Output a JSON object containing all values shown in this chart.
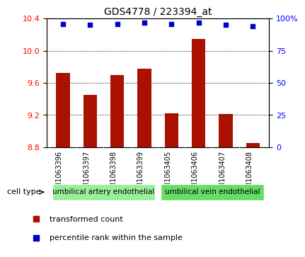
{
  "title": "GDS4778 / 223394_at",
  "samples": [
    "GSM1063396",
    "GSM1063397",
    "GSM1063398",
    "GSM1063399",
    "GSM1063405",
    "GSM1063406",
    "GSM1063407",
    "GSM1063408"
  ],
  "bar_values": [
    9.72,
    9.45,
    9.7,
    9.78,
    9.22,
    10.15,
    9.21,
    8.85
  ],
  "percentile_values": [
    96,
    95,
    96,
    97,
    96,
    97,
    95,
    94
  ],
  "ylim_left": [
    8.8,
    10.4
  ],
  "ylim_right": [
    0,
    100
  ],
  "yticks_left": [
    8.8,
    9.2,
    9.6,
    10.0,
    10.4
  ],
  "yticks_right": [
    0,
    25,
    50,
    75,
    100
  ],
  "ytick_labels_right": [
    "0",
    "25",
    "50",
    "75",
    "100%"
  ],
  "bar_color": "#aa1100",
  "dot_color": "#0000cc",
  "grid_color": "#000000",
  "cell_types": [
    {
      "label": "umbilical artery endothelial",
      "samples": [
        0,
        1,
        2,
        3
      ],
      "color": "#99ee99"
    },
    {
      "label": "umbilical vein endothelial",
      "samples": [
        4,
        5,
        6,
        7
      ],
      "color": "#66dd66"
    }
  ],
  "legend_items": [
    {
      "label": "transformed count",
      "color": "#aa1100",
      "marker": "s"
    },
    {
      "label": "percentile rank within the sample",
      "color": "#0000cc",
      "marker": "s"
    }
  ],
  "cell_type_label": "cell type",
  "background_color": "#ffffff",
  "plot_bg_color": "#ffffff",
  "tick_area_color": "#cccccc"
}
